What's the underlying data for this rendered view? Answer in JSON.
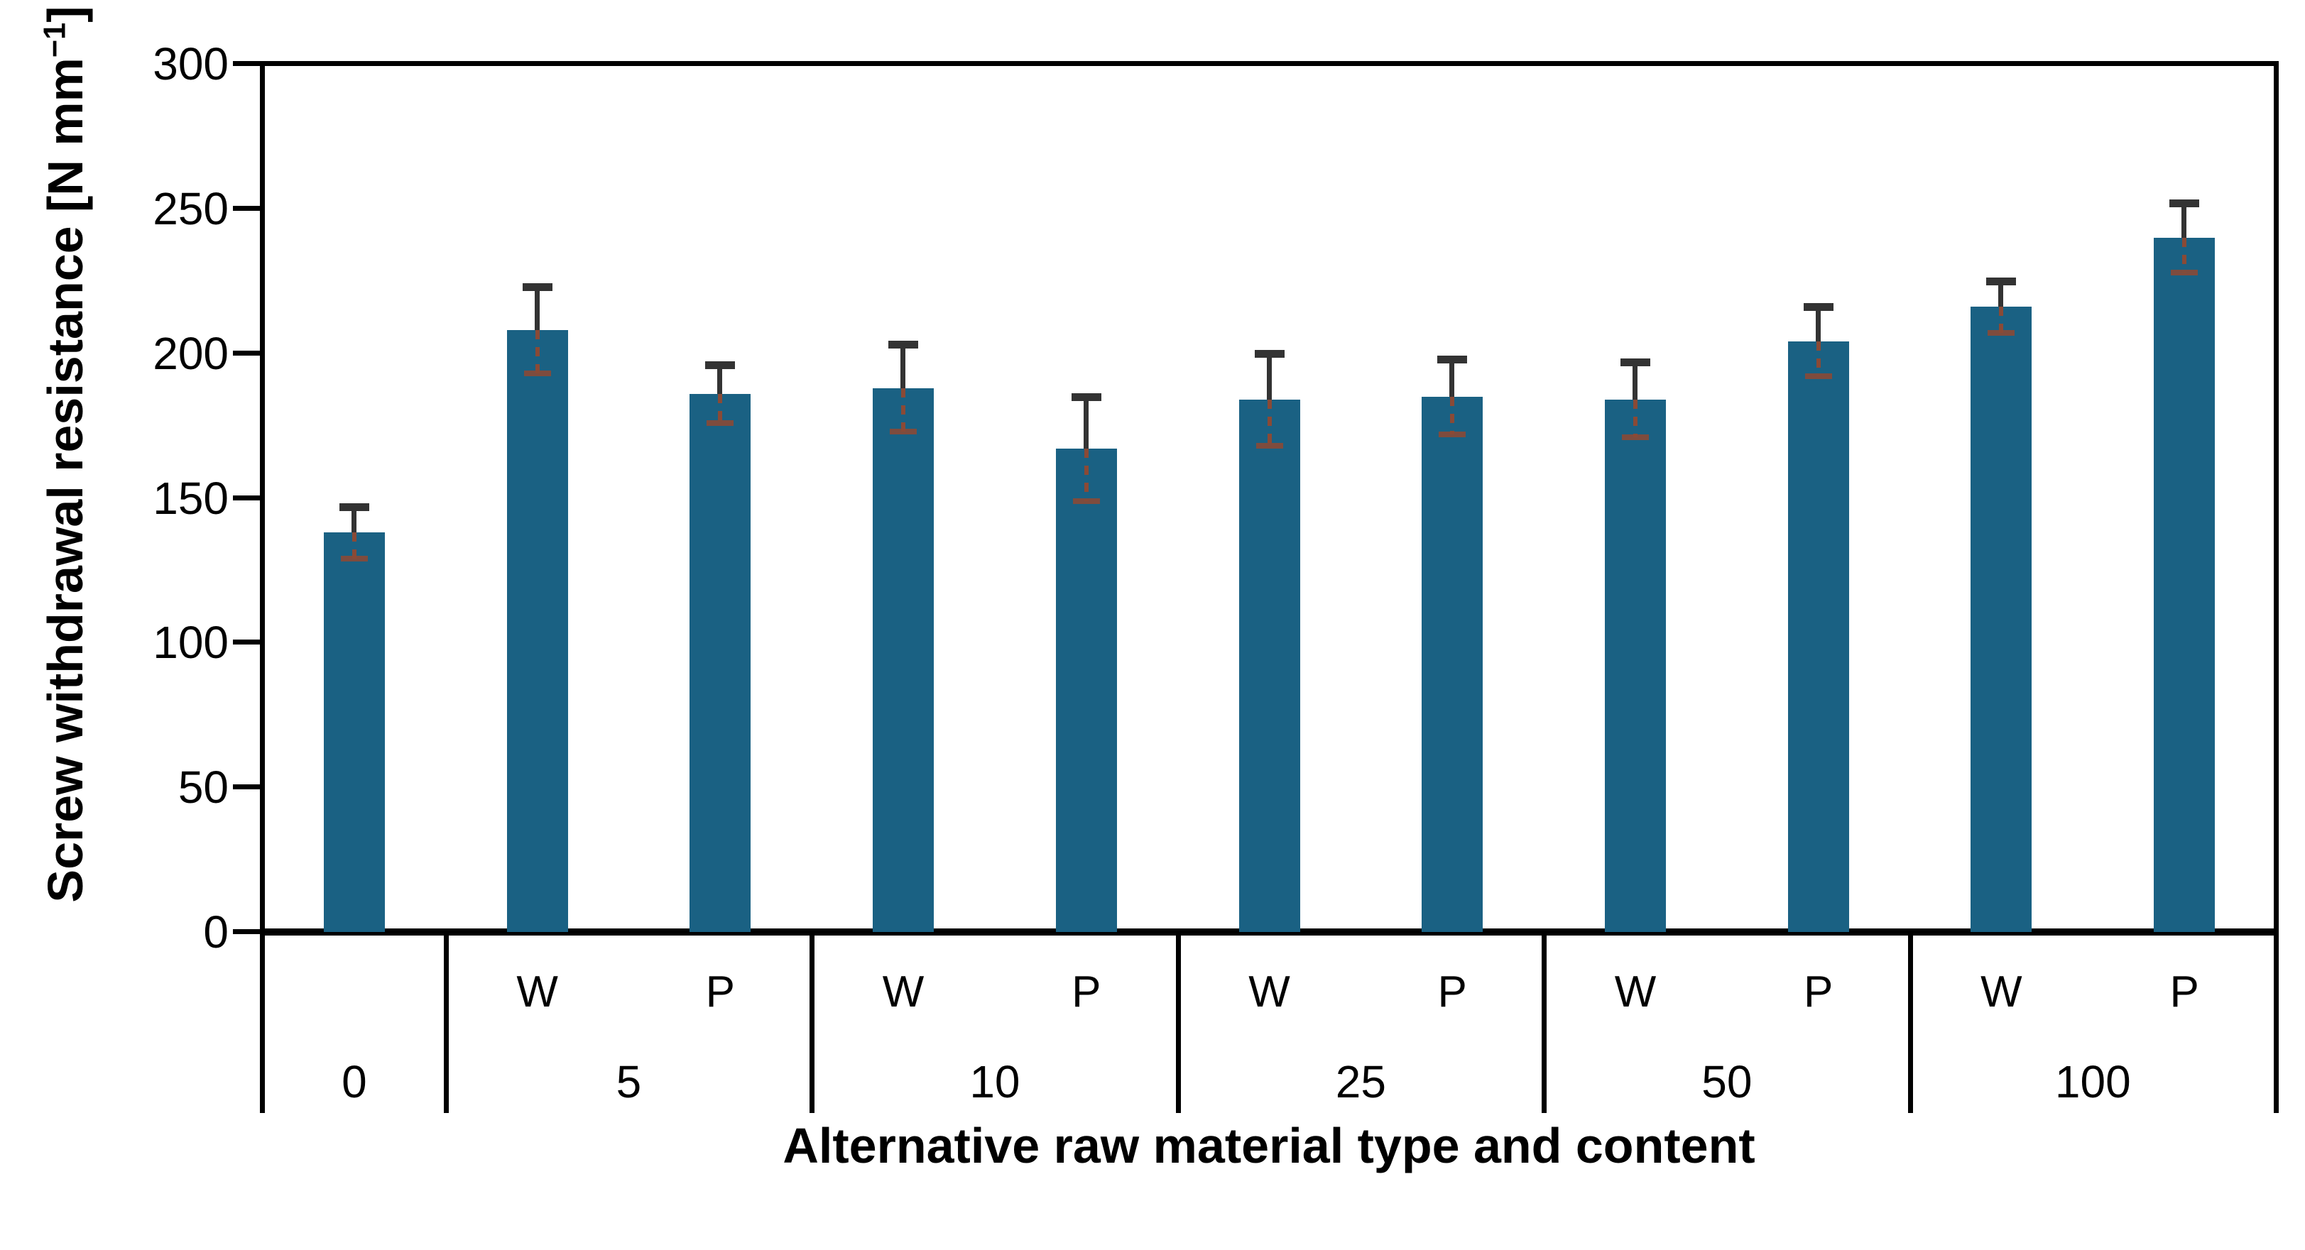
{
  "chart_data": {
    "type": "bar",
    "title": "",
    "xlabel": "Alternative raw material type and content",
    "ylabel": "Screw withdrawal resistance [N mm⁻¹]",
    "ylabel_main": "Screw withdrawal resistance [N mm",
    "ylabel_sup": "−1",
    "ylabel_end": "]",
    "ylim": [
      0,
      300
    ],
    "yticks": [
      0,
      50,
      100,
      150,
      200,
      250,
      300
    ],
    "grid": "off",
    "legend": "none",
    "error_bars": "symmetric, shown on every bar",
    "groups": [
      {
        "label": "0",
        "bars": [
          {
            "sub": "",
            "value": 138,
            "error": 9
          }
        ]
      },
      {
        "label": "5",
        "bars": [
          {
            "sub": "W",
            "value": 208,
            "error": 15
          },
          {
            "sub": "P",
            "value": 186,
            "error": 10
          }
        ]
      },
      {
        "label": "10",
        "bars": [
          {
            "sub": "W",
            "value": 188,
            "error": 15
          },
          {
            "sub": "P",
            "value": 167,
            "error": 18
          }
        ]
      },
      {
        "label": "25",
        "bars": [
          {
            "sub": "W",
            "value": 184,
            "error": 16
          },
          {
            "sub": "P",
            "value": 185,
            "error": 13
          }
        ]
      },
      {
        "label": "50",
        "bars": [
          {
            "sub": "W",
            "value": 184,
            "error": 13
          },
          {
            "sub": "P",
            "value": 204,
            "error": 12
          }
        ]
      },
      {
        "label": "100",
        "bars": [
          {
            "sub": "W",
            "value": 216,
            "error": 9
          },
          {
            "sub": "P",
            "value": 240,
            "error": 12
          }
        ]
      }
    ],
    "colors": {
      "bar_fill": "#1A6183",
      "error_upper": "#333333",
      "error_lower": "#8A4A36",
      "axis": "#000000",
      "background": "#ffffff"
    }
  }
}
